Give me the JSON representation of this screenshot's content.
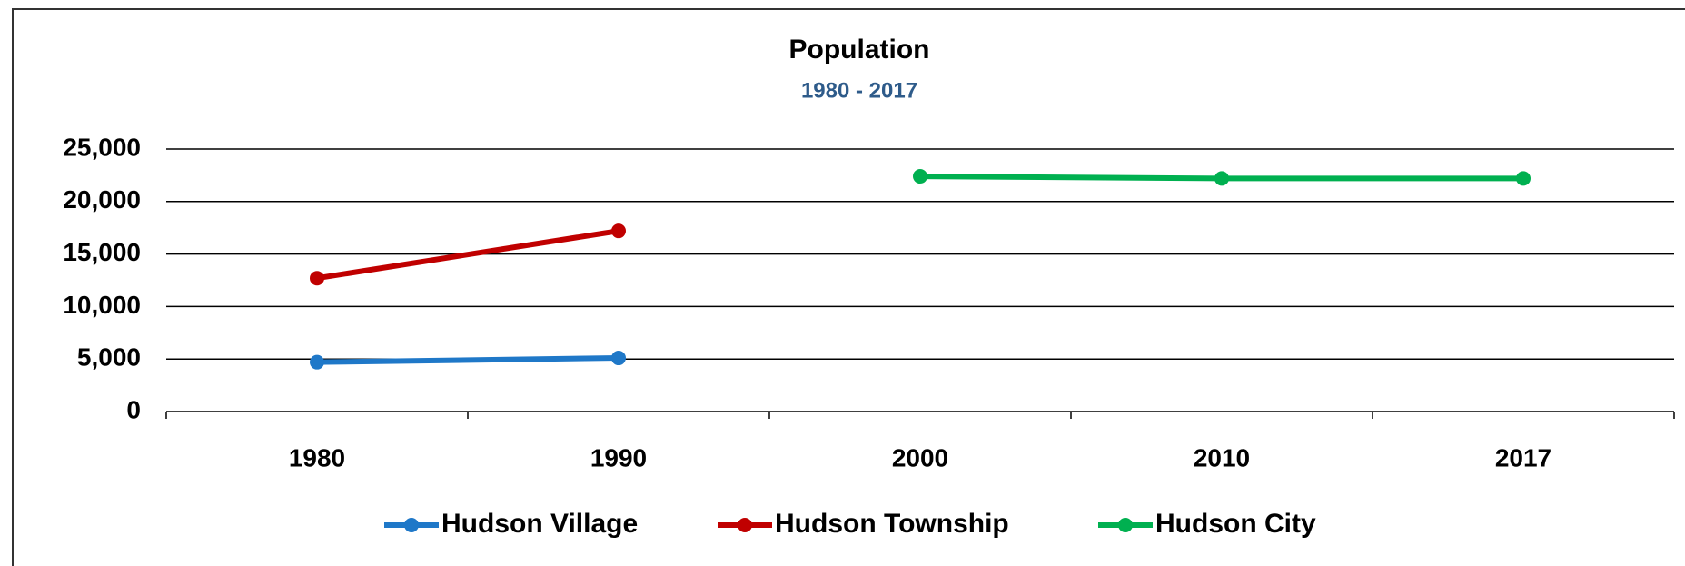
{
  "chart_data": {
    "type": "line",
    "title": "Population",
    "subtitle": "1980 - 2017",
    "categories": [
      "1980",
      "1990",
      "2000",
      "2010",
      "2017"
    ],
    "series": [
      {
        "name": "Hudson Village",
        "color": "#1f78c8",
        "values": [
          4700,
          5100,
          null,
          null,
          null
        ]
      },
      {
        "name": "Hudson Township",
        "color": "#c00000",
        "values": [
          12700,
          17200,
          null,
          null,
          null
        ]
      },
      {
        "name": "Hudson City",
        "color": "#00b050",
        "values": [
          null,
          null,
          22400,
          22200,
          22200
        ]
      }
    ],
    "ylim": [
      0,
      25000
    ],
    "yticks": [
      0,
      {
        "value": 5000,
        "label": "5,000"
      },
      {
        "value": 10000,
        "label": "10,000"
      },
      {
        "value": 15000,
        "label": "15,000"
      },
      {
        "value": 20000,
        "label": "20,000"
      },
      {
        "value": 25000,
        "label": "25,000"
      }
    ],
    "grid": true,
    "legend": "bottom"
  }
}
